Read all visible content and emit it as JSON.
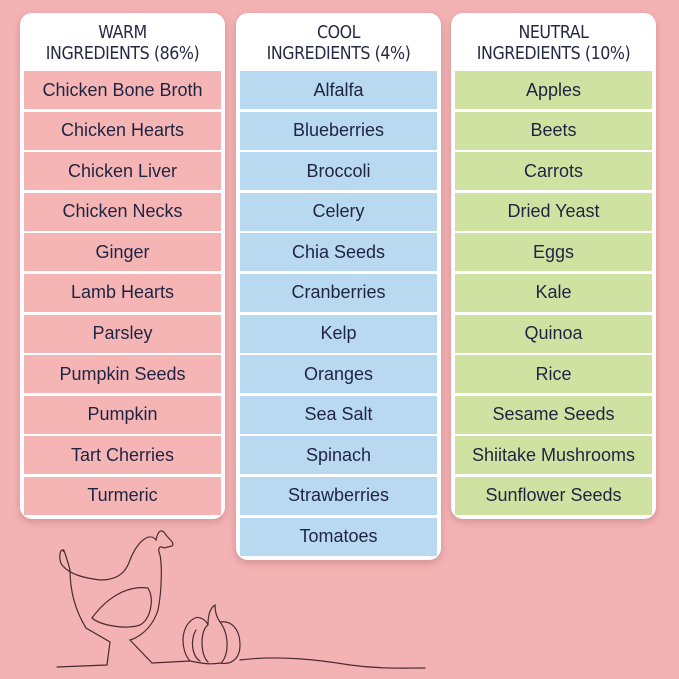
{
  "columns": [
    {
      "title_line1": "WARM",
      "title_line2": "INGREDIENTS (86%)",
      "color": "#f5b5b5",
      "items": [
        "Chicken Bone Broth",
        "Chicken Hearts",
        "Chicken Liver",
        "Chicken Necks",
        "Ginger",
        "Lamb Hearts",
        "Parsley",
        "Pumpkin Seeds",
        "Pumpkin",
        "Tart Cherries",
        "Turmeric"
      ]
    },
    {
      "title_line1": "COOL",
      "title_line2": "INGREDIENTS (4%)",
      "color": "#b9d9f1",
      "items": [
        "Alfalfa",
        "Blueberries",
        "Broccoli",
        "Celery",
        "Chia Seeds",
        "Cranberries",
        "Kelp",
        "Oranges",
        "Sea Salt",
        "Spinach",
        "Strawberries",
        "Tomatoes"
      ]
    },
    {
      "title_line1": "NEUTRAL",
      "title_line2": "INGREDIENTS (10%)",
      "color": "#d0e2a2",
      "items": [
        "Apples",
        "Beets",
        "Carrots",
        "Dried Yeast",
        "Eggs",
        "Kale",
        "Quinoa",
        "Rice",
        "Sesame Seeds",
        "Shiitake Mushrooms",
        "Sunflower Seeds"
      ]
    }
  ],
  "background_color": "#f3b3b4",
  "illustration": "chicken-and-pumpkin-line-art"
}
